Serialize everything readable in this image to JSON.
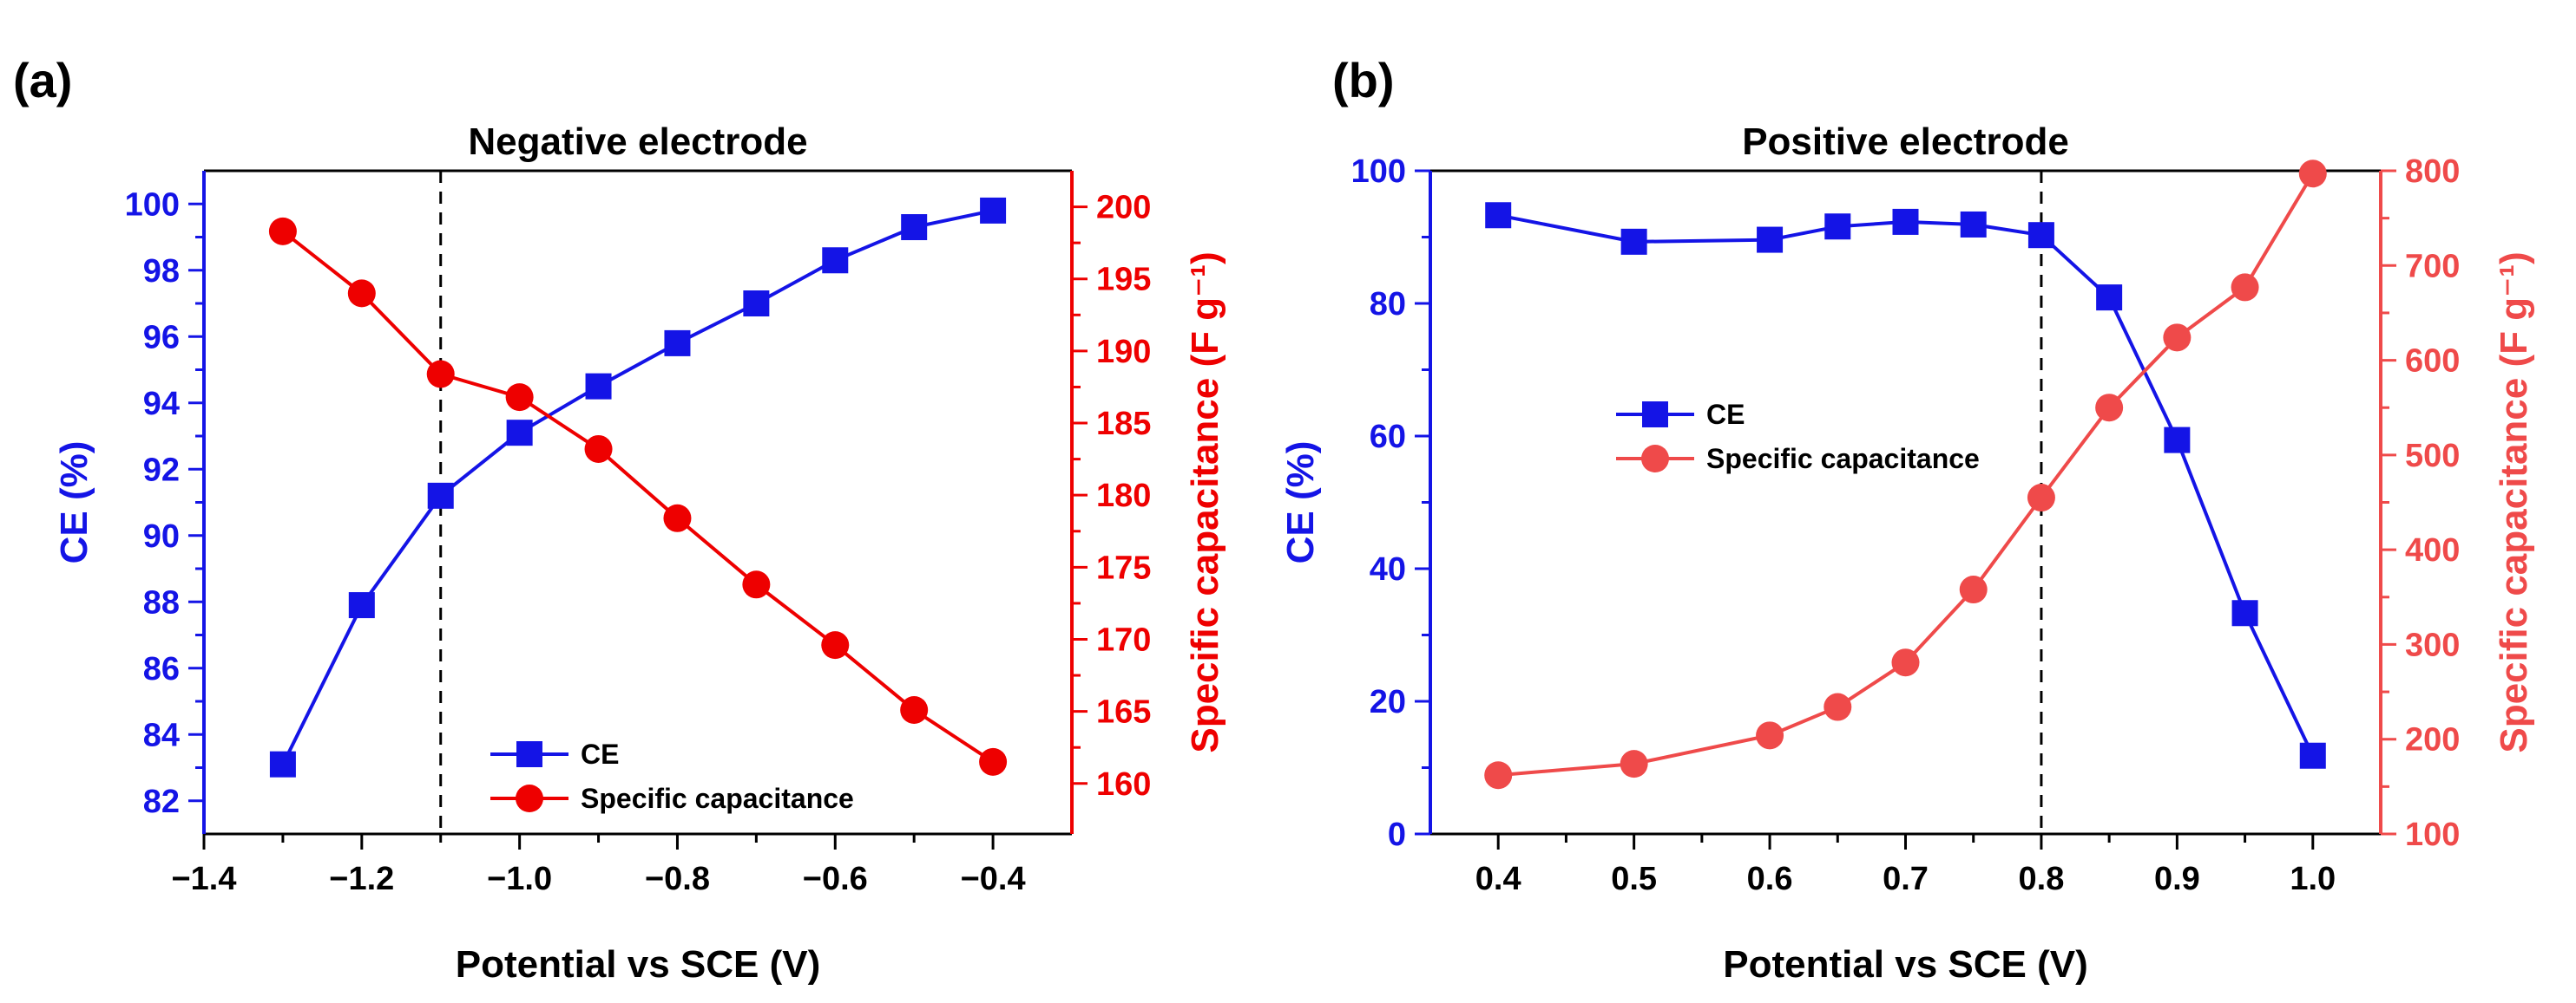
{
  "colors": {
    "ce": "#1414e6",
    "cap_a": "#ee0000",
    "cap_b": "#ef4a4a",
    "axis": "#000000",
    "guide": "#000000"
  },
  "chart_data": [
    {
      "type": "line",
      "panel_label": "(a)",
      "title": "Negative electrode",
      "xlabel": "Potential vs SCE (V)",
      "ylabel": "CE (%)",
      "y2label": "Specific capacitance (F g⁻¹)",
      "xlim": [
        -1.4,
        -0.3
      ],
      "ylim": [
        81,
        101
      ],
      "y2lim": [
        156.5,
        202.5
      ],
      "xticks": [
        -1.4,
        -1.2,
        -1.0,
        -0.8,
        -0.6,
        -0.4
      ],
      "xtick_labels": [
        "−1.4",
        "−1.2",
        "−1.0",
        "−0.8",
        "−0.6",
        "−0.4"
      ],
      "yticks": [
        82,
        84,
        86,
        88,
        90,
        92,
        94,
        96,
        98,
        100
      ],
      "ytick_labels": [
        "82",
        "84",
        "86",
        "88",
        "90",
        "92",
        "94",
        "96",
        "98",
        "100"
      ],
      "y2ticks": [
        160,
        165,
        170,
        175,
        180,
        185,
        190,
        195,
        200
      ],
      "y2tick_labels": [
        "160",
        "165",
        "170",
        "175",
        "180",
        "185",
        "190",
        "195",
        "200"
      ],
      "guide_x": -1.1,
      "legend_position": "bottom-center",
      "series": [
        {
          "name": "CE",
          "axis": "left",
          "marker": "square",
          "x": [
            -1.3,
            -1.2,
            -1.1,
            -1.0,
            -0.9,
            -0.8,
            -0.7,
            -0.6,
            -0.5,
            -0.4
          ],
          "y": [
            83.1,
            87.9,
            91.2,
            93.1,
            94.5,
            95.8,
            97.0,
            98.3,
            99.3,
            99.8
          ]
        },
        {
          "name": "Specific capacitance",
          "axis": "right",
          "marker": "circle",
          "x": [
            -1.3,
            -1.2,
            -1.1,
            -1.0,
            -0.9,
            -0.8,
            -0.7,
            -0.6,
            -0.5,
            -0.4
          ],
          "y": [
            198.3,
            194.0,
            188.4,
            186.8,
            183.2,
            178.4,
            173.8,
            169.6,
            165.1,
            161.5
          ]
        }
      ]
    },
    {
      "type": "line",
      "panel_label": "(b)",
      "title": "Positive electrode",
      "xlabel": "Potential vs SCE (V)",
      "ylabel": "CE (%)",
      "y2label": "Specific capacitance (F g⁻¹)",
      "xlim": [
        0.35,
        1.05
      ],
      "ylim": [
        0,
        100
      ],
      "y2lim": [
        100,
        800
      ],
      "xticks": [
        0.4,
        0.5,
        0.6,
        0.7,
        0.8,
        0.9,
        1.0
      ],
      "xtick_labels": [
        "0.4",
        "0.5",
        "0.6",
        "0.7",
        "0.8",
        "0.9",
        "1.0"
      ],
      "yticks": [
        0,
        20,
        40,
        60,
        80,
        100
      ],
      "ytick_labels": [
        "0",
        "20",
        "40",
        "60",
        "80",
        "100"
      ],
      "y2ticks": [
        100,
        200,
        300,
        400,
        500,
        600,
        700,
        800
      ],
      "y2tick_labels": [
        "100",
        "200",
        "300",
        "400",
        "500",
        "600",
        "700",
        "800"
      ],
      "guide_x": 0.8,
      "legend_position": "center-left",
      "series": [
        {
          "name": "CE",
          "axis": "left",
          "marker": "square",
          "x": [
            0.4,
            0.5,
            0.6,
            0.65,
            0.7,
            0.75,
            0.8,
            0.85,
            0.9,
            0.95,
            1.0
          ],
          "y": [
            93.3,
            89.3,
            89.6,
            91.6,
            92.3,
            91.9,
            90.3,
            80.9,
            59.4,
            33.3,
            11.8
          ]
        },
        {
          "name": "Specific capacitance",
          "axis": "right",
          "marker": "circle",
          "x": [
            0.4,
            0.5,
            0.6,
            0.65,
            0.7,
            0.75,
            0.8,
            0.85,
            0.9,
            0.95,
            1.0
          ],
          "y": [
            162,
            174,
            204,
            234,
            281,
            358,
            455,
            550,
            624,
            677,
            797
          ]
        }
      ]
    }
  ]
}
